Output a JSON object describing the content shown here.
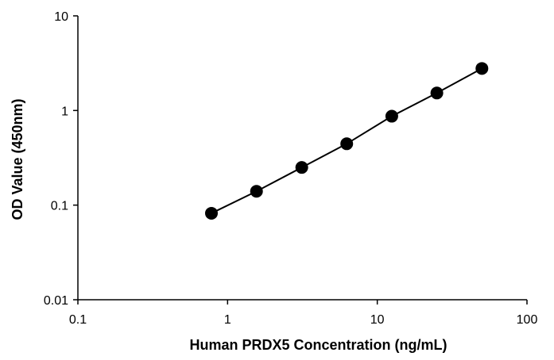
{
  "chart_data": {
    "type": "scatter",
    "title": "",
    "xlabel": "Human PRDX5 Concentration (ng/mL)",
    "ylabel": "OD Value (450nm)",
    "x_scale": "log",
    "y_scale": "log",
    "xlim": [
      0.1,
      100
    ],
    "ylim": [
      0.01,
      10
    ],
    "x_ticks": [
      "0.1",
      "1",
      "10",
      "100"
    ],
    "y_ticks": [
      "0.01",
      "0.1",
      "1",
      "10"
    ],
    "grid": false,
    "legend": "none",
    "series": [
      {
        "x": [
          0.78,
          1.56,
          3.13,
          6.25,
          12.5,
          25,
          50
        ],
        "y": [
          0.082,
          0.14,
          0.25,
          0.445,
          0.87,
          1.53,
          2.78
        ],
        "color": "#000000",
        "line": true
      }
    ]
  }
}
